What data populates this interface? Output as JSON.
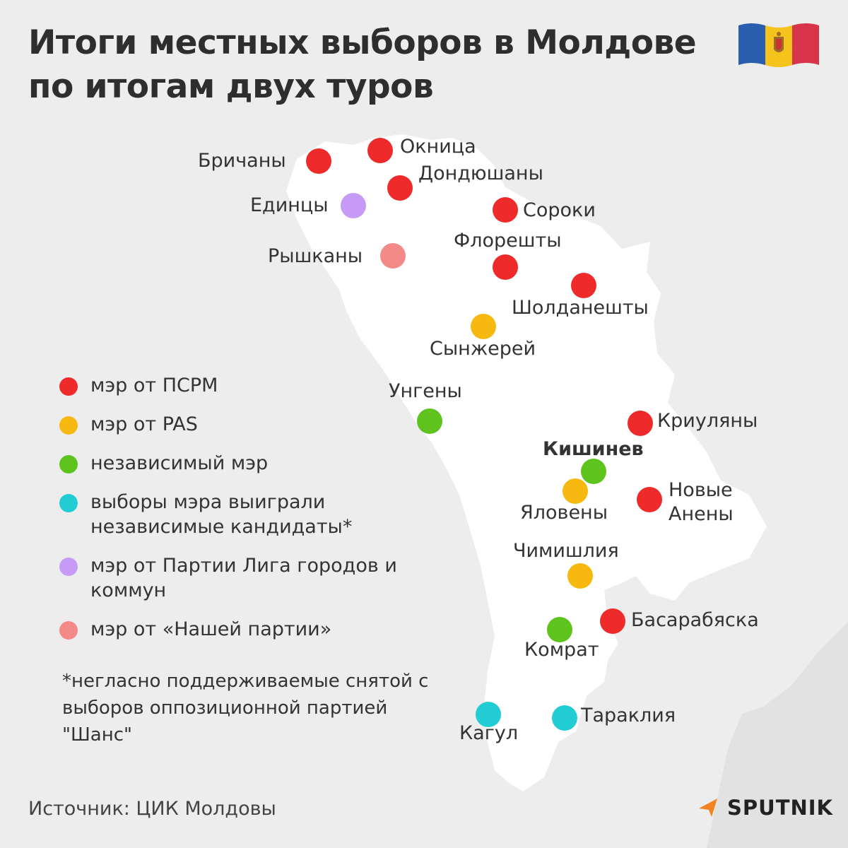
{
  "title": {
    "line1": "Итоги местных выборов в Молдове",
    "line2": "по итогам двух туров"
  },
  "flag": {
    "colors": [
      "#2a5fb0",
      "#f5c41c",
      "#d9354a"
    ],
    "emblem": "coat-of-arms-icon"
  },
  "colors": {
    "psrm": "#ee2a2a",
    "pas": "#f7b90f",
    "independent": "#5fc31e",
    "independent_candidates": "#22ccd4",
    "league": "#c79af5",
    "our_party": "#f48a87",
    "map_fill": "#ffffff",
    "background": "#ededed"
  },
  "legend": [
    {
      "key": "psrm",
      "label": "мэр от ПСРМ"
    },
    {
      "key": "pas",
      "label": "мэр от PAS"
    },
    {
      "key": "independent",
      "label": "независимый мэр"
    },
    {
      "key": "independent_candidates",
      "label": "выборы мэра выиграли независимые кандидаты*"
    },
    {
      "key": "league",
      "label": "мэр от Партии Лига городов и коммун"
    },
    {
      "key": "our_party",
      "label": "мэр от «Нашей партии»"
    }
  ],
  "footnote": "*негласно поддерживаемые снятой с выборов оппозиционной партией \"Шанс\"",
  "cities": [
    {
      "name": "Бричаны",
      "party": "psrm"
    },
    {
      "name": "Окница",
      "party": "psrm"
    },
    {
      "name": "Дондюшаны",
      "party": "psrm"
    },
    {
      "name": "Единцы",
      "party": "league"
    },
    {
      "name": "Сороки",
      "party": "psrm"
    },
    {
      "name": "Рышканы",
      "party": "our_party"
    },
    {
      "name": "Флорешты",
      "party": "psrm"
    },
    {
      "name": "Шолданешты",
      "party": "psrm"
    },
    {
      "name": "Сынжерей",
      "party": "pas"
    },
    {
      "name": "Унгены",
      "party": "independent"
    },
    {
      "name": "Криуляны",
      "party": "psrm"
    },
    {
      "name": "Кишинев",
      "party": "independent",
      "capital": true
    },
    {
      "name": "Яловены",
      "party": "pas"
    },
    {
      "name": "Новые Анены",
      "party": "psrm"
    },
    {
      "name": "Чимишлия",
      "party": "pas"
    },
    {
      "name": "Басарабяска",
      "party": "psrm"
    },
    {
      "name": "Комрат",
      "party": "independent"
    },
    {
      "name": "Кагул",
      "party": "independent_candidates"
    },
    {
      "name": "Тараклия",
      "party": "independent_candidates"
    }
  ],
  "source": "Источник: ЦИК Молдовы",
  "brand": {
    "name": "SPUTNIK",
    "icon": "sputnik-logo-icon",
    "color": "#f58220"
  }
}
